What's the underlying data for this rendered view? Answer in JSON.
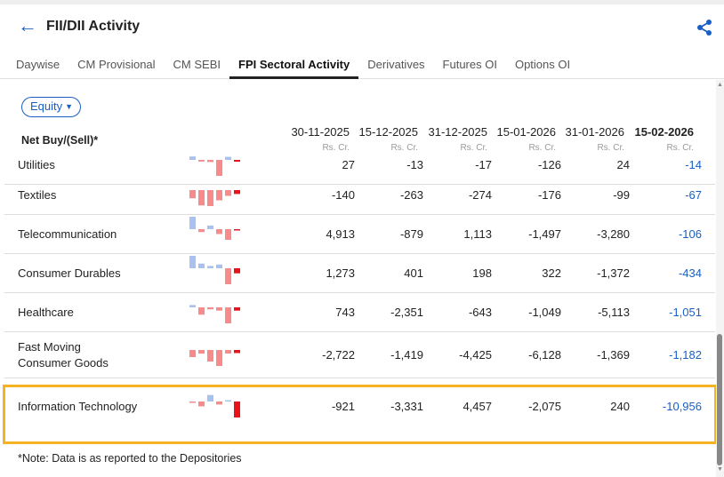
{
  "header": {
    "title": "FII/DII Activity",
    "back_icon": "arrow-left-icon",
    "share_icon": "share-icon"
  },
  "tabs": [
    {
      "label": "Daywise"
    },
    {
      "label": "CM Provisional"
    },
    {
      "label": "CM SEBI"
    },
    {
      "label": "FPI Sectoral Activity",
      "active": true
    },
    {
      "label": "Derivatives"
    },
    {
      "label": "Futures OI"
    },
    {
      "label": "Options OI"
    }
  ],
  "filter": {
    "selected": "Equity"
  },
  "table": {
    "label": "Net Buy/(Sell)*",
    "columns": [
      {
        "date": "30-11-2025",
        "unit": "Rs. Cr."
      },
      {
        "date": "15-12-2025",
        "unit": "Rs. Cr."
      },
      {
        "date": "31-12-2025",
        "unit": "Rs. Cr."
      },
      {
        "date": "15-01-2026",
        "unit": "Rs. Cr."
      },
      {
        "date": "31-01-2026",
        "unit": "Rs. Cr."
      },
      {
        "date": "15-02-2026",
        "unit": "Rs. Cr."
      }
    ],
    "rows": [
      {
        "name": "Utilities",
        "values": [
          "27",
          "-13",
          "-17",
          "-126",
          "24",
          "-14"
        ]
      },
      {
        "name": "Textiles",
        "values": [
          "-140",
          "-263",
          "-274",
          "-176",
          "-99",
          "-67"
        ]
      },
      {
        "name": "Telecommunication",
        "values": [
          "4,913",
          "-879",
          "1,113",
          "-1,497",
          "-3,280",
          "-106"
        ]
      },
      {
        "name": "Consumer Durables",
        "values": [
          "1,273",
          "401",
          "198",
          "322",
          "-1,372",
          "-434"
        ]
      },
      {
        "name": "Healthcare",
        "values": [
          "743",
          "-2,351",
          "-643",
          "-1,049",
          "-5,113",
          "-1,051"
        ]
      },
      {
        "name": "Fast Moving Consumer Goods",
        "values": [
          "-2,722",
          "-1,419",
          "-4,425",
          "-6,128",
          "-1,369",
          "-1,182"
        ]
      },
      {
        "name": "Information Technology",
        "values": [
          "-921",
          "-3,331",
          "4,457",
          "-2,075",
          "240",
          "-10,956"
        ],
        "highlighted": true
      }
    ]
  },
  "colors": {
    "accent": "#1a5fc4",
    "highlight": "#f5b324",
    "positive": "#a9c1ee",
    "negative": "#f78b8b",
    "negative_latest": "#e8141b"
  },
  "note": "*Note: Data is as reported to the Depositories"
}
